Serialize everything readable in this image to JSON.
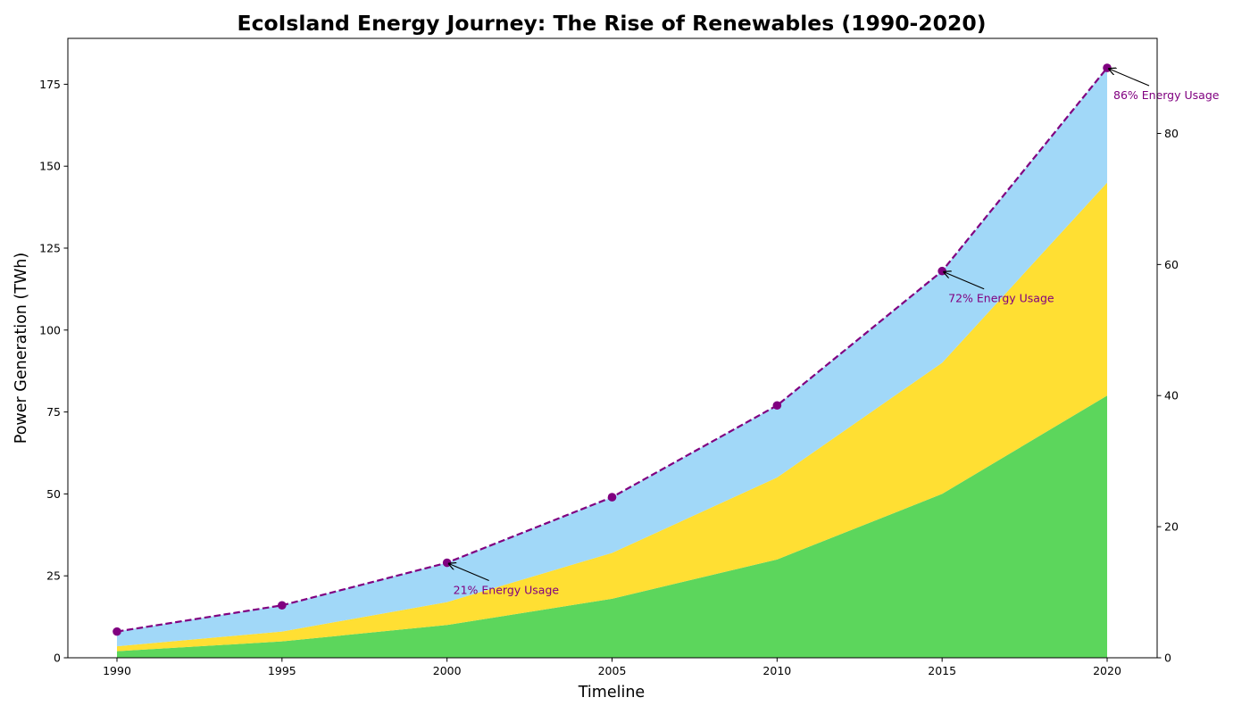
{
  "chart_data": {
    "type": "area",
    "title": "EcoIsland Energy Journey: The Rise of Renewables (1990-2020)",
    "xlabel": "Timeline",
    "ylabel": "Power Generation (TWh)",
    "x": [
      1990,
      1995,
      2000,
      2005,
      2010,
      2015,
      2020
    ],
    "x_ticks": [
      "1990",
      "1995",
      "2000",
      "2005",
      "2010",
      "2015",
      "2020"
    ],
    "ylim": [
      0,
      189
    ],
    "y_ticks": [
      "0",
      "25",
      "50",
      "75",
      "100",
      "125",
      "150",
      "175"
    ],
    "stacked": true,
    "series": [
      {
        "values": [
          2,
          5,
          10,
          18,
          30,
          50,
          80
        ],
        "color": "#5cd65c"
      },
      {
        "values": [
          1.5,
          3,
          7,
          14,
          25,
          40,
          65
        ],
        "color": "#ffdf33"
      },
      {
        "values": [
          4.5,
          8,
          12,
          17,
          22,
          28,
          35
        ],
        "color": "#a1d8f8"
      }
    ],
    "secondary": {
      "type": "line",
      "style": "dashed",
      "marker": "circle",
      "color": "#800080",
      "ylim": [
        0,
        94.5
      ],
      "y_ticks": [
        "0",
        "20",
        "40",
        "60",
        "80"
      ],
      "values": [
        4,
        8,
        14.5,
        24.5,
        38.5,
        59,
        90
      ]
    },
    "annotations": [
      {
        "x": 2000,
        "text": "21% Energy Usage"
      },
      {
        "x": 2015,
        "text": "72% Energy Usage"
      },
      {
        "x": 2020,
        "text": "86% Energy Usage"
      }
    ],
    "grid": false,
    "legend": "none"
  }
}
